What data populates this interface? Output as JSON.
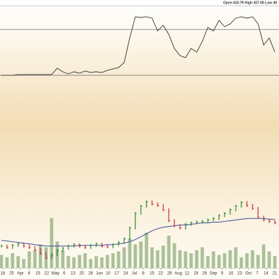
{
  "chart_data": {
    "type": "stock",
    "header": "Open 423.79  High 427.90  Low 40",
    "x": [
      0,
      1,
      2,
      3,
      4,
      5,
      6,
      7,
      8,
      9,
      10,
      11,
      12,
      13,
      14,
      15,
      16,
      17,
      18,
      19,
      20,
      21,
      22,
      23,
      24,
      25,
      26,
      27,
      28,
      29,
      30,
      31,
      32,
      33,
      34,
      35,
      36,
      37,
      38,
      39,
      40,
      41,
      42,
      43,
      44,
      45,
      46,
      47,
      48,
      49
    ],
    "xlim": [
      -0.25,
      49.75
    ],
    "xticks": [
      {
        "value": 0.25,
        "label": "18"
      },
      {
        "value": 1.82,
        "label": "25"
      },
      {
        "value": 3.4,
        "label": "Apr"
      },
      {
        "value": 4.97,
        "label": "8"
      },
      {
        "value": 6.54,
        "label": "15"
      },
      {
        "value": 8.11,
        "label": "22"
      },
      {
        "value": 9.69,
        "label": "May"
      },
      {
        "value": 11.26,
        "label": "6"
      },
      {
        "value": 12.83,
        "label": "13"
      },
      {
        "value": 14.4,
        "label": "20"
      },
      {
        "value": 15.98,
        "label": "28"
      },
      {
        "value": 17.55,
        "label": "Jun"
      },
      {
        "value": 19.12,
        "label": "10"
      },
      {
        "value": 20.69,
        "label": "17"
      },
      {
        "value": 22.27,
        "label": "24"
      },
      {
        "value": 23.84,
        "label": "Jul"
      },
      {
        "value": 25.41,
        "label": "8"
      },
      {
        "value": 26.98,
        "label": "15"
      },
      {
        "value": 28.55,
        "label": "22"
      },
      {
        "value": 30.13,
        "label": "29"
      },
      {
        "value": 31.7,
        "label": "Aug"
      },
      {
        "value": 33.27,
        "label": "12"
      },
      {
        "value": 34.85,
        "label": "19"
      },
      {
        "value": 36.42,
        "label": "26"
      },
      {
        "value": 37.99,
        "label": "Sep"
      },
      {
        "value": 39.56,
        "label": "9"
      },
      {
        "value": 41.14,
        "label": "16"
      },
      {
        "value": 42.71,
        "label": "23"
      },
      {
        "value": 44.28,
        "label": "Oct"
      },
      {
        "value": 45.85,
        "label": "7"
      },
      {
        "value": 47.43,
        "label": "14"
      },
      {
        "value": 49,
        "label": "21"
      }
    ],
    "indicator": {
      "color": "#333333",
      "ylim": [
        0,
        100
      ],
      "hlines": [
        72,
        7
      ],
      "hline_color": "#777777",
      "values": [
        7,
        7,
        7,
        8,
        8,
        8,
        8,
        8,
        8,
        8,
        17,
        12,
        9,
        12,
        10,
        13,
        11,
        12,
        11,
        14,
        16,
        18,
        25,
        60,
        90,
        89,
        90,
        88,
        70,
        78,
        65,
        45,
        35,
        32,
        45,
        40,
        55,
        75,
        70,
        85,
        76,
        80,
        88,
        90,
        88,
        90,
        80,
        50,
        60,
        40
      ]
    },
    "price": {
      "ylim": [
        0,
        100
      ],
      "up_color": "#2a8a2a",
      "down_color": "#c0303a",
      "close": [
        30,
        28,
        31,
        33,
        30,
        28,
        25,
        20,
        14,
        18,
        24,
        27,
        30,
        32,
        30,
        28,
        31,
        33,
        30,
        29,
        32,
        35,
        40,
        55,
        75,
        85,
        91,
        88,
        86,
        80,
        65,
        58,
        55,
        60,
        62,
        63,
        64,
        66,
        68,
        72,
        75,
        80,
        85,
        90,
        86,
        82,
        70,
        66,
        64,
        62
      ],
      "ma_color": "#3a4a9a",
      "ma": [
        38,
        37,
        36,
        35,
        34,
        33,
        32,
        31,
        30,
        30,
        30,
        30,
        30,
        30,
        31,
        31,
        31,
        31,
        31,
        32,
        32,
        33,
        34,
        36,
        39,
        43,
        47,
        51,
        54,
        56,
        57,
        58,
        59,
        59,
        60,
        61,
        62,
        62,
        63,
        63,
        64,
        65,
        66,
        67,
        68,
        68,
        68,
        68,
        67,
        67
      ]
    },
    "volume": {
      "ylim": [
        0,
        100
      ],
      "color": "#8fae7a",
      "values": [
        22,
        18,
        25,
        20,
        15,
        28,
        30,
        40,
        35,
        85,
        45,
        30,
        20,
        18,
        22,
        25,
        15,
        20,
        18,
        22,
        25,
        28,
        35,
        50,
        40,
        45,
        60,
        35,
        30,
        38,
        55,
        42,
        30,
        28,
        25,
        30,
        35,
        20,
        28,
        22,
        25,
        30,
        35,
        18,
        25,
        30,
        22,
        40,
        28,
        20
      ]
    }
  }
}
